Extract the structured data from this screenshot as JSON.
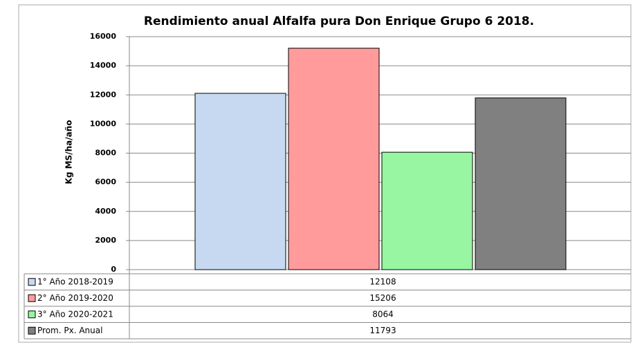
{
  "chart_data": {
    "type": "bar",
    "title": "Rendimiento anual Alfalfa pura Don Enrique Grupo 6 2018.",
    "y_label": "Kg MS/ha/año",
    "categories": [
      null
    ],
    "series": [
      {
        "name": "1° Año 2018-2019",
        "color": "#c6d9f1",
        "values": [
          12108
        ]
      },
      {
        "name": "2° Año 2019-2020",
        "color": "#ff9b9b",
        "values": [
          15206
        ]
      },
      {
        "name": "3° Año 2020-2021",
        "color": "#98f5a2",
        "values": [
          8064
        ]
      },
      {
        "name": "Prom. Px. Anual",
        "color": "#808080",
        "values": [
          11793
        ]
      }
    ],
    "ylim": [
      0,
      16000
    ],
    "yticks": [
      0,
      2000,
      4000,
      6000,
      8000,
      10000,
      12000,
      14000,
      16000
    ],
    "grid": true
  }
}
